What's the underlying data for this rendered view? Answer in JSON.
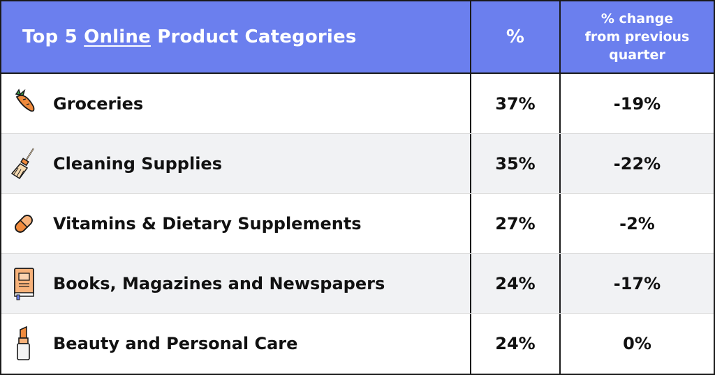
{
  "chart_data": {
    "type": "table",
    "header": {
      "title_prefix": "Top 5 ",
      "title_underlined": "Online",
      "title_suffix": " Product Categories",
      "col_pct": "%",
      "col_change_lines": [
        "% change",
        "from previous",
        "quarter"
      ]
    },
    "rows": [
      {
        "category": "Groceries",
        "pct": "37%",
        "change": "-19%",
        "icon": "carrot-icon"
      },
      {
        "category": "Cleaning Supplies",
        "pct": "35%",
        "change": "-22%",
        "icon": "broom-icon"
      },
      {
        "category": "Vitamins & Dietary Supplements",
        "pct": "27%",
        "change": "-2%",
        "icon": "pill-capsule-icon"
      },
      {
        "category": "Books, Magazines and Newspapers",
        "pct": "24%",
        "change": "-17%",
        "icon": "book-icon"
      },
      {
        "category": "Beauty and Personal Care",
        "pct": "24%",
        "change": "0%",
        "icon": "lipstick-icon"
      }
    ],
    "colors": {
      "header_bg": "#6b7fee",
      "header_text": "#ffffff",
      "alt_row_bg": "#f1f2f4",
      "icon_orange": "#f08a3c"
    }
  }
}
